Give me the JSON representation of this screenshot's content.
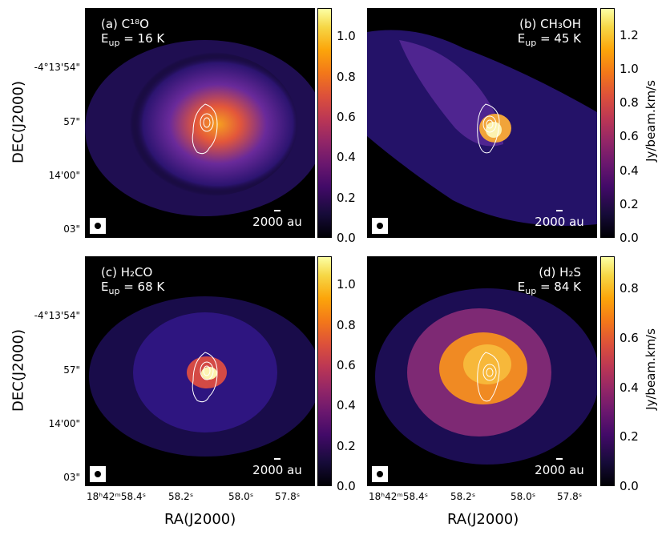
{
  "panels": [
    {
      "label": "(a) C¹⁸O",
      "eup": "E$up = 16 K",
      "scalebar": "2000 au"
    },
    {
      "label": "(b) CH₃OH",
      "eup": "Eup = 45 K",
      "scalebar": "2000 au"
    },
    {
      "label": "(c) H₂CO",
      "eup": "Eup = 68 K",
      "scalebar": "2000 au"
    },
    {
      "label": "(d) H₂S",
      "eup": "Eup = 84 K",
      "scalebar": "2000 au"
    }
  ],
  "colorbars": {
    "a": [
      "0.0",
      "0.2",
      "0.4",
      "0.6",
      "0.8",
      "1.0"
    ],
    "b": [
      "0.0",
      "0.2",
      "0.4",
      "0.6",
      "0.8",
      "1.0",
      "1.2"
    ],
    "c": [
      "0.0",
      "0.2",
      "0.4",
      "0.6",
      "0.8",
      "1.0"
    ],
    "d": [
      "0.0",
      "0.2",
      "0.4",
      "0.6",
      "0.8"
    ]
  },
  "colorbar_label": "Jy/beam.km/s",
  "dec_ticks": [
    "-4°13'54\"",
    "57\"",
    "14'00\"",
    "03\""
  ],
  "ra_ticks": [
    "18ʰ42ᵐ58.4ˢ",
    "58.2ˢ",
    "58.0ˢ",
    "57.8ˢ"
  ],
  "dec_title": "DEC(J2000)",
  "ra_title": "RA(J2000)",
  "colors": {
    "background": "#000000",
    "contour": "#ffffff"
  }
}
